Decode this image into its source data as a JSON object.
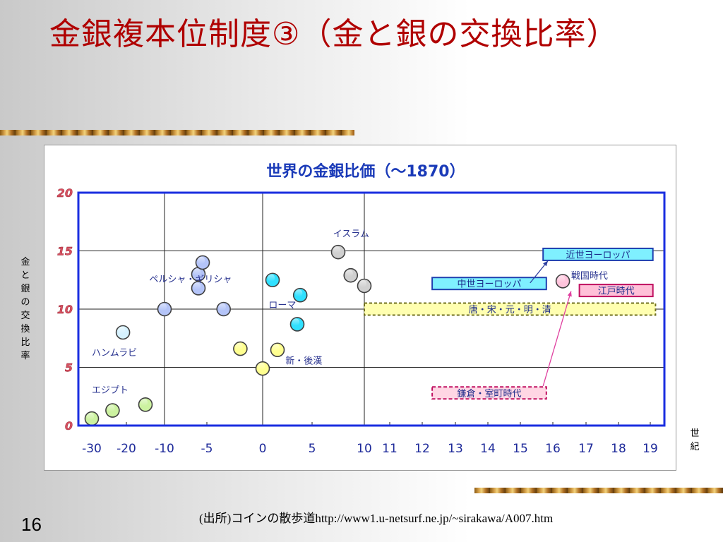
{
  "slide": {
    "title": "金銀複本位制度③（金と銀の交換比率）",
    "page_number": "16",
    "source": "(出所)コインの散歩道http://www1.u-netsurf.ne.jp/~sirakawa/A007.htm",
    "y_axis_title": "金と銀の交換比率",
    "x_axis_title": "世紀"
  },
  "colors": {
    "title": "#b00000",
    "plot_frame": "#1a2ee0",
    "chart_title": "#1a3ab8",
    "label_text": "#2a3490",
    "tick_text": "#1e2a9a"
  },
  "chart_data": {
    "type": "scatter",
    "title": "世界の金銀比価（～1870）",
    "xlabel": "世紀",
    "ylabel": "金と銀の交換比率",
    "ylim": [
      0,
      20
    ],
    "yticks": [
      0,
      5,
      10,
      15,
      20
    ],
    "xticks": [
      "-30",
      "-20",
      "-10",
      "-5",
      "0",
      "5",
      "10",
      "11",
      "12",
      "13",
      "14",
      "15",
      "16",
      "17",
      "18",
      "19"
    ],
    "grid": true,
    "series": [
      {
        "name": "エジプト",
        "color": "#ccf2a0",
        "points": [
          [
            -30,
            0.6
          ],
          [
            -24,
            1.3
          ],
          [
            -15,
            1.8
          ]
        ]
      },
      {
        "name": "ハンムラビ",
        "color": "#d6f2ff",
        "points": [
          [
            -21,
            8.0
          ]
        ]
      },
      {
        "name": "ペルシャ・ギリシャ",
        "color": "#b4c4f8",
        "points": [
          [
            -10,
            10.0
          ],
          [
            -6,
            11.8
          ],
          [
            -6,
            13.0
          ],
          [
            -5.5,
            14.0
          ],
          [
            -3.5,
            10.0
          ]
        ]
      },
      {
        "name": "ローマ",
        "color": "#30e0ff",
        "points": [
          [
            1,
            12.5
          ],
          [
            3.8,
            11.2
          ],
          [
            3.5,
            8.7
          ]
        ]
      },
      {
        "name": "新・後漢",
        "color": "#ffff90",
        "points": [
          [
            -2,
            6.6
          ],
          [
            0,
            4.9
          ],
          [
            1.5,
            6.5
          ]
        ]
      },
      {
        "name": "イスラム",
        "color": "#d0d0d0",
        "points": [
          [
            7.5,
            14.9
          ],
          [
            8.7,
            12.9
          ],
          [
            10,
            12.0
          ]
        ]
      },
      {
        "name": "戦国時代",
        "color": "#ffc4dc",
        "points": [
          [
            16.3,
            12.4
          ]
        ]
      }
    ],
    "annotations": [
      {
        "text": "近世ヨーロッパ",
        "style": "cyan-box",
        "x_start": 15.7,
        "x_end": 19.1,
        "y": 14.7
      },
      {
        "text": "中世ヨーロッパ",
        "style": "cyan-box",
        "x_start": 12.3,
        "x_end": 15.8,
        "y": 12.2
      },
      {
        "text": "唐・宋・元・明・清",
        "style": "yellow-band",
        "x_start": 10,
        "x_end": 19.2,
        "y": 10.0
      },
      {
        "text": "江戸時代",
        "style": "pink-box",
        "x_start": 16.8,
        "x_end": 19.1,
        "y": 11.6
      },
      {
        "text": "鎌倉・室町時代",
        "style": "pink-dashed-box",
        "x_start": 12.3,
        "x_end": 15.8,
        "y": 2.8
      }
    ]
  }
}
